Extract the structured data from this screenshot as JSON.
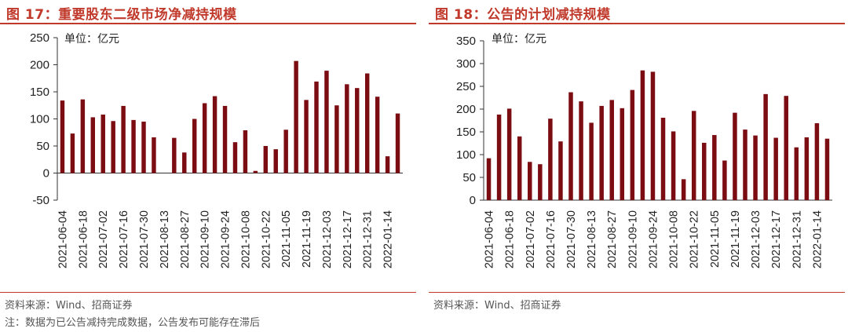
{
  "left": {
    "title": "图 17：重要股东二级市场净减持规模",
    "unit": "单位：亿元",
    "source": "资料来源：Wind、招商证券",
    "note": "注：数据为已公告减持完成数据，公告发布可能存在滞后",
    "chart_data": {
      "type": "bar",
      "title": "重要股东二级市场净减持规模",
      "unit": "亿元",
      "ylim": [
        -50,
        250
      ],
      "yticks": [
        -50,
        0,
        50,
        100,
        150,
        200,
        250
      ],
      "x_tick_labels": [
        "2021-06-04",
        "2021-06-18",
        "2021-07-02",
        "2021-07-16",
        "2021-07-30",
        "2021-08-13",
        "2021-08-27",
        "2021-09-10",
        "2021-09-24",
        "2021-10-08",
        "2021-10-22",
        "2021-11-05",
        "2021-11-19",
        "2021-12-03",
        "2021-12-17",
        "2021-12-31",
        "2022-01-14"
      ],
      "values": [
        134,
        73,
        136,
        103,
        108,
        96,
        124,
        98,
        95,
        66,
        0,
        65,
        38,
        100,
        129,
        142,
        124,
        57,
        79,
        4,
        50,
        44,
        80,
        207,
        135,
        169,
        189,
        125,
        164,
        157,
        184,
        141,
        31,
        110
      ],
      "color": "#7b0c12"
    }
  },
  "right": {
    "title": "图 18：公告的计划减持规模",
    "unit": "单位：亿元",
    "source": "资料来源：Wind、招商证券",
    "chart_data": {
      "type": "bar",
      "title": "公告的计划减持规模",
      "unit": "亿元",
      "ylim": [
        0,
        350
      ],
      "yticks": [
        0,
        50,
        100,
        150,
        200,
        250,
        300,
        350
      ],
      "x_tick_labels": [
        "2021-06-04",
        "2021-06-18",
        "2021-07-02",
        "2021-07-16",
        "2021-07-30",
        "2021-08-13",
        "2021-08-27",
        "2021-09-10",
        "2021-09-24",
        "2021-10-08",
        "2021-10-22",
        "2021-11-05",
        "2021-11-19",
        "2021-12-03",
        "2021-12-17",
        "2021-12-31",
        "2022-01-14"
      ],
      "values": [
        92,
        188,
        201,
        140,
        84,
        79,
        179,
        129,
        237,
        217,
        170,
        207,
        220,
        202,
        242,
        285,
        282,
        181,
        151,
        46,
        196,
        126,
        143,
        87,
        192,
        155,
        142,
        233,
        137,
        229,
        116,
        138,
        169,
        135
      ],
      "color": "#7b0c12"
    }
  }
}
